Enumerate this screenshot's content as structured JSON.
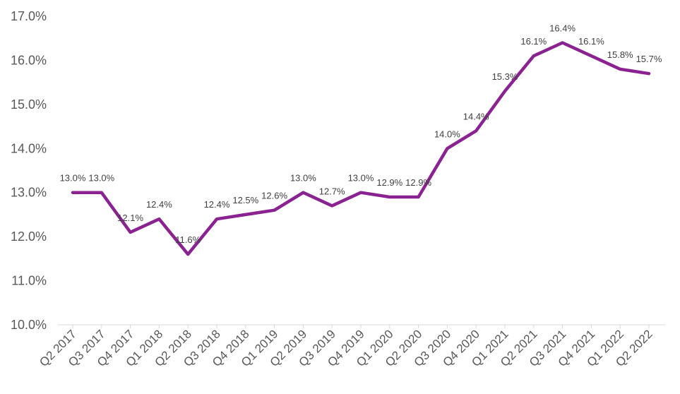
{
  "chart_data": {
    "type": "line",
    "categories": [
      "Q2 2017",
      "Q3 2017",
      "Q4 2017",
      "Q1 2018",
      "Q2 2018",
      "Q3 2018",
      "Q4 2018",
      "Q1 2019",
      "Q2 2019",
      "Q3 2019",
      "Q4 2019",
      "Q1 2020",
      "Q2 2020",
      "Q3 2020",
      "Q4 2020",
      "Q1 2021",
      "Q2 2021",
      "Q3 2021",
      "Q4 2021",
      "Q1 2022",
      "Q2 2022"
    ],
    "series": [
      {
        "values": [
          13.0,
          13.0,
          12.1,
          12.4,
          11.6,
          12.4,
          12.5,
          12.6,
          13.0,
          12.7,
          13.0,
          12.9,
          12.9,
          14.0,
          14.4,
          15.3,
          16.1,
          16.4,
          16.1,
          15.8,
          15.7
        ],
        "labels": [
          "13.0%",
          "13.0%",
          "12.1%",
          "12.4%",
          "11.6%",
          "12.4%",
          "12.5%",
          "12.6%",
          "13.0%",
          "12.7%",
          "13.0%",
          "12.9%",
          "12.9%",
          "14.0%",
          "14.4%",
          "15.3%",
          "16.1%",
          "16.4%",
          "16.1%",
          "15.8%",
          "15.7%"
        ],
        "color": "#8B2291"
      }
    ],
    "y_ticks": [
      "10.0%",
      "11.0%",
      "12.0%",
      "13.0%",
      "14.0%",
      "15.0%",
      "16.0%",
      "17.0%"
    ],
    "ylim": [
      10,
      17
    ],
    "grid": false,
    "legend": "none",
    "axis_color": "#D9D9D9"
  }
}
